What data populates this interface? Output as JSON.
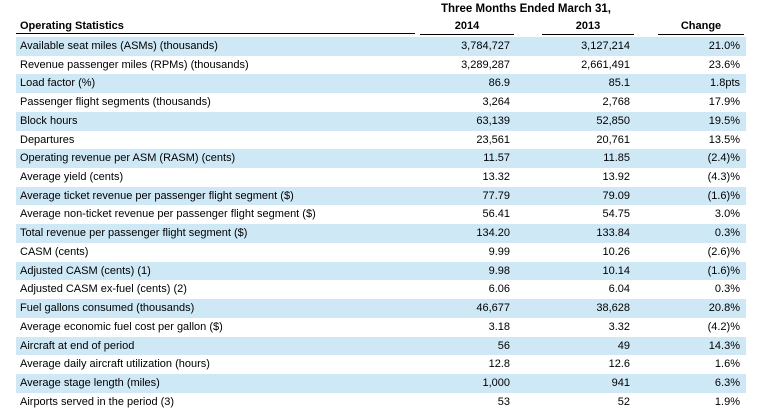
{
  "header": {
    "group_title": "Three Months Ended March 31,",
    "label_col": "Operating Statistics",
    "col_2014": "2014",
    "col_2013": "2013",
    "col_change": "Change"
  },
  "rows": [
    {
      "label": "Available seat miles (ASMs) (thousands)",
      "v2014": "3,784,727",
      "v2013": "3,127,214",
      "change": "21.0%"
    },
    {
      "label": "Revenue passenger miles (RPMs) (thousands)",
      "v2014": "3,289,287",
      "v2013": "2,661,491",
      "change": "23.6%"
    },
    {
      "label": "Load factor (%)",
      "v2014": "86.9",
      "v2013": "85.1",
      "change": "1.8pts"
    },
    {
      "label": "Passenger flight segments (thousands)",
      "v2014": "3,264",
      "v2013": "2,768",
      "change": "17.9%"
    },
    {
      "label": "Block hours",
      "v2014": "63,139",
      "v2013": "52,850",
      "change": "19.5%"
    },
    {
      "label": "Departures",
      "v2014": "23,561",
      "v2013": "20,761",
      "change": "13.5%"
    },
    {
      "label": "Operating revenue per ASM (RASM) (cents)",
      "v2014": "11.57",
      "v2013": "11.85",
      "change": "(2.4)%"
    },
    {
      "label": "Average yield (cents)",
      "v2014": "13.32",
      "v2013": "13.92",
      "change": "(4.3)%"
    },
    {
      "label": "Average ticket revenue per passenger flight segment ($)",
      "v2014": "77.79",
      "v2013": "79.09",
      "change": "(1.6)%"
    },
    {
      "label": "Average non-ticket revenue per passenger flight segment ($)",
      "v2014": "56.41",
      "v2013": "54.75",
      "change": "3.0%"
    },
    {
      "label": "Total revenue per passenger flight segment ($)",
      "v2014": "134.20",
      "v2013": "133.84",
      "change": "0.3%"
    },
    {
      "label": "CASM (cents)",
      "v2014": "9.99",
      "v2013": "10.26",
      "change": "(2.6)%"
    },
    {
      "label": "Adjusted CASM (cents) (1)",
      "v2014": "9.98",
      "v2013": "10.14",
      "change": "(1.6)%"
    },
    {
      "label": "Adjusted CASM ex-fuel (cents) (2)",
      "v2014": "6.06",
      "v2013": "6.04",
      "change": "0.3%"
    },
    {
      "label": "Fuel gallons consumed (thousands)",
      "v2014": "46,677",
      "v2013": "38,628",
      "change": "20.8%"
    },
    {
      "label": "Average economic fuel cost per gallon ($)",
      "v2014": "3.18",
      "v2013": "3.32",
      "change": "(4.2)%"
    },
    {
      "label": "Aircraft at end of period",
      "v2014": "56",
      "v2013": "49",
      "change": "14.3%"
    },
    {
      "label": "Average daily aircraft utilization (hours)",
      "v2014": "12.8",
      "v2013": "12.6",
      "change": "1.6%"
    },
    {
      "label": "Average stage length (miles)",
      "v2014": "1,000",
      "v2013": "941",
      "change": "6.3%"
    },
    {
      "label": "Airports served in the period (3)",
      "v2014": "53",
      "v2013": "52",
      "change": "1.9%"
    }
  ],
  "style": {
    "row_shade": "#cfe8f6"
  }
}
